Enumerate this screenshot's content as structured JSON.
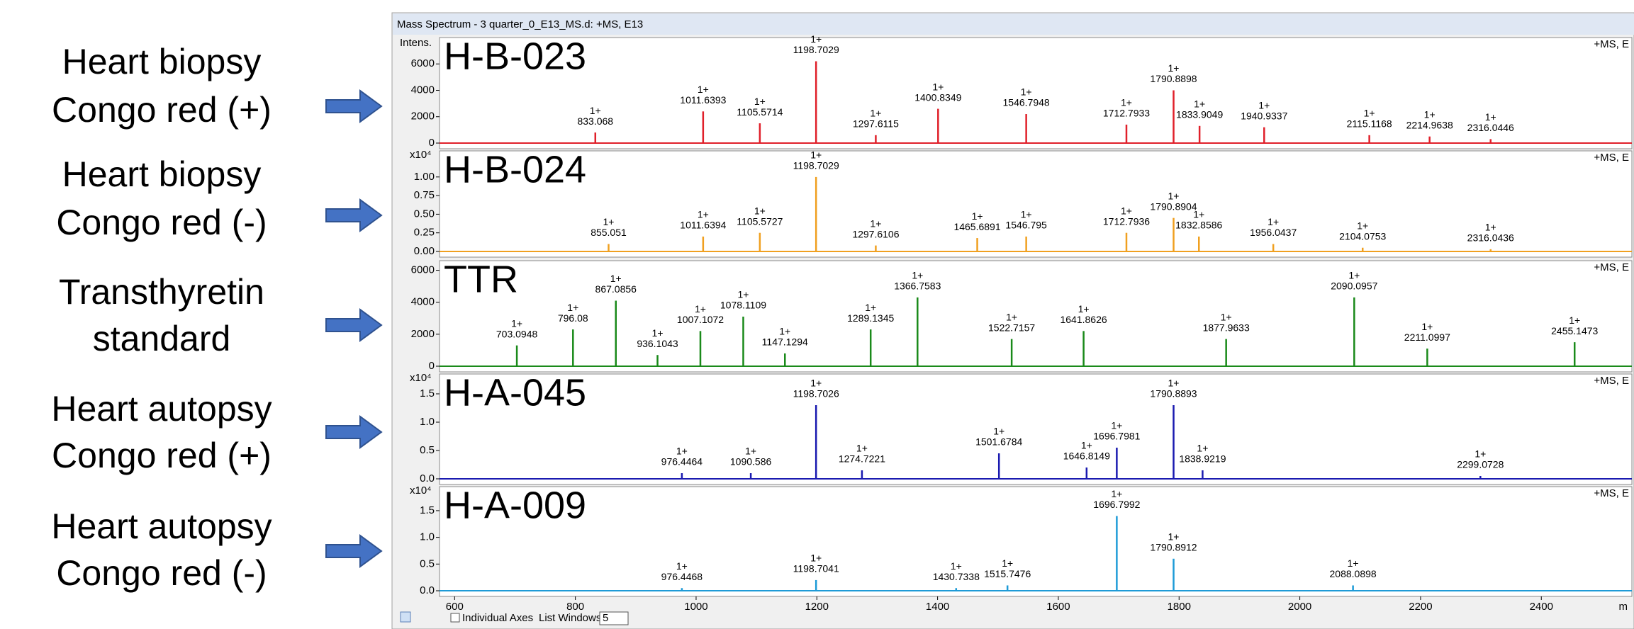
{
  "annotations": [
    {
      "lines": [
        "Heart biopsy",
        "Congo red (+)"
      ]
    },
    {
      "lines": [
        "Heart biopsy",
        "Congo red (-)"
      ]
    },
    {
      "lines": [
        "Transthyretin",
        "standard"
      ]
    },
    {
      "lines": [
        "Heart autopsy",
        "Congo red (+)"
      ]
    },
    {
      "lines": [
        "Heart autopsy",
        "Congo red (-)"
      ]
    }
  ],
  "window_title": "Mass Spectrum - 3 quarter_0_E13_MS.d: +MS, E13",
  "toolbar": {
    "checkbox_label": "Individual Axes",
    "list_label": "List Windows:",
    "list_value": "5"
  },
  "chart_data": [
    {
      "type": "stem",
      "title": "H-B-023",
      "ylabel": "Intens.",
      "spectrum_label": "+MS, E",
      "color": "#e0202a",
      "xlim": [
        575,
        2550
      ],
      "ylim": [
        0,
        8000
      ],
      "yticks": [
        0,
        2000,
        4000,
        6000
      ],
      "x": [
        833.068,
        1011.6393,
        1105.5714,
        1198.7029,
        1297.6115,
        1400.8349,
        1546.7948,
        1712.7933,
        1790.8898,
        1833.9049,
        1940.9337,
        2115.1168,
        2214.9638,
        2316.0446
      ],
      "values": [
        800,
        2400,
        1500,
        6200,
        600,
        2600,
        2200,
        1400,
        4000,
        1300,
        1200,
        600,
        500,
        300
      ],
      "charges": [
        "1+",
        "1+",
        "1+",
        "1+",
        "1+",
        "1+",
        "1+",
        "1+",
        "1+",
        "1+",
        "1+",
        "1+",
        "1+",
        "1+"
      ]
    },
    {
      "type": "stem",
      "title": "H-B-024",
      "y_multiplier": "x10⁴",
      "spectrum_label": "+MS, E",
      "color": "#f0a020",
      "xlim": [
        575,
        2550
      ],
      "ylim": [
        0,
        1.35
      ],
      "yticks": [
        {
          "value": 0,
          "label": "0.00"
        },
        0.25,
        {
          "value": 0.5,
          "label": "0.50"
        },
        0.75,
        {
          "value": 1,
          "label": "1.00"
        }
      ],
      "x": [
        855.051,
        1011.6394,
        1105.5727,
        1198.7029,
        1297.6106,
        1465.6891,
        1546.795,
        1712.7936,
        1790.8904,
        1832.8586,
        1956.0437,
        2104.0753,
        2316.0436
      ],
      "values": [
        0.1,
        0.2,
        0.25,
        1.0,
        0.08,
        0.18,
        0.2,
        0.25,
        0.45,
        0.2,
        0.1,
        0.05,
        0.03
      ],
      "charges": [
        "1+",
        "1+",
        "1+",
        "1+",
        "1+",
        "1+",
        "1+",
        "1+",
        "1+",
        "1+",
        "1+",
        "1+",
        "1+"
      ]
    },
    {
      "type": "stem",
      "title": "TTR",
      "spectrum_label": "+MS, E",
      "color": "#1a8a1a",
      "xlim": [
        575,
        2550
      ],
      "ylim": [
        0,
        6600
      ],
      "yticks": [
        0,
        2000,
        4000,
        6000
      ],
      "x": [
        703.0948,
        796.08,
        867.0856,
        936.1043,
        1007.1072,
        1078.1109,
        1147.1294,
        1289.1345,
        1366.7583,
        1522.7157,
        1641.8626,
        1877.9633,
        2090.0957,
        2211.0997,
        2455.1473
      ],
      "values": [
        1300,
        2300,
        4100,
        700,
        2200,
        3100,
        800,
        2300,
        4300,
        1700,
        2200,
        1700,
        4300,
        1100,
        1500
      ],
      "charges": [
        "1+",
        "1+",
        "1+",
        "1+",
        "1+",
        "1+",
        "1+",
        "1+",
        "1+",
        "1+",
        "1+",
        "1+",
        "1+",
        "1+",
        "1+"
      ]
    },
    {
      "type": "stem",
      "title": "H-A-045",
      "y_multiplier": "x10⁴",
      "spectrum_label": "+MS, E",
      "color": "#1a1ab0",
      "xlim": [
        575,
        2550
      ],
      "ylim": [
        0,
        1.85
      ],
      "yticks": [
        {
          "value": 0,
          "label": "0.0"
        },
        0.5,
        {
          "value": 1,
          "label": "1.0"
        },
        1.5
      ],
      "x": [
        976.4464,
        1090.586,
        1198.7026,
        1274.7221,
        1501.6784,
        1646.8149,
        1696.7981,
        1790.8893,
        1838.9219,
        2299.0728
      ],
      "values": [
        0.1,
        0.1,
        1.3,
        0.15,
        0.45,
        0.2,
        0.55,
        1.3,
        0.15,
        0.05
      ],
      "charges": [
        "1+",
        "1+",
        "1+",
        "1+",
        "1+",
        "1+",
        "1+",
        "1+",
        "1+",
        "1+"
      ]
    },
    {
      "type": "stem",
      "title": "H-A-009",
      "y_multiplier": "x10⁴",
      "spectrum_label": "+MS, E",
      "color": "#1e9bd7",
      "xlim": [
        575,
        2550
      ],
      "ylim": [
        0,
        1.95
      ],
      "yticks": [
        {
          "value": 0,
          "label": "0.0"
        },
        0.5,
        {
          "value": 1,
          "label": "1.0"
        },
        1.5
      ],
      "xticks": [
        600,
        800,
        1000,
        1200,
        1400,
        1600,
        1800,
        2000,
        2200,
        2400
      ],
      "xlabel": "m",
      "x": [
        976.4468,
        1198.7041,
        1430.7338,
        1515.7476,
        1696.7992,
        1790.8912,
        2088.0898
      ],
      "values": [
        0.05,
        0.2,
        0.05,
        0.1,
        1.4,
        0.6,
        0.1
      ],
      "charges": [
        "1+",
        "1+",
        "1+",
        "1+",
        "1+",
        "1+",
        "1+"
      ]
    }
  ]
}
